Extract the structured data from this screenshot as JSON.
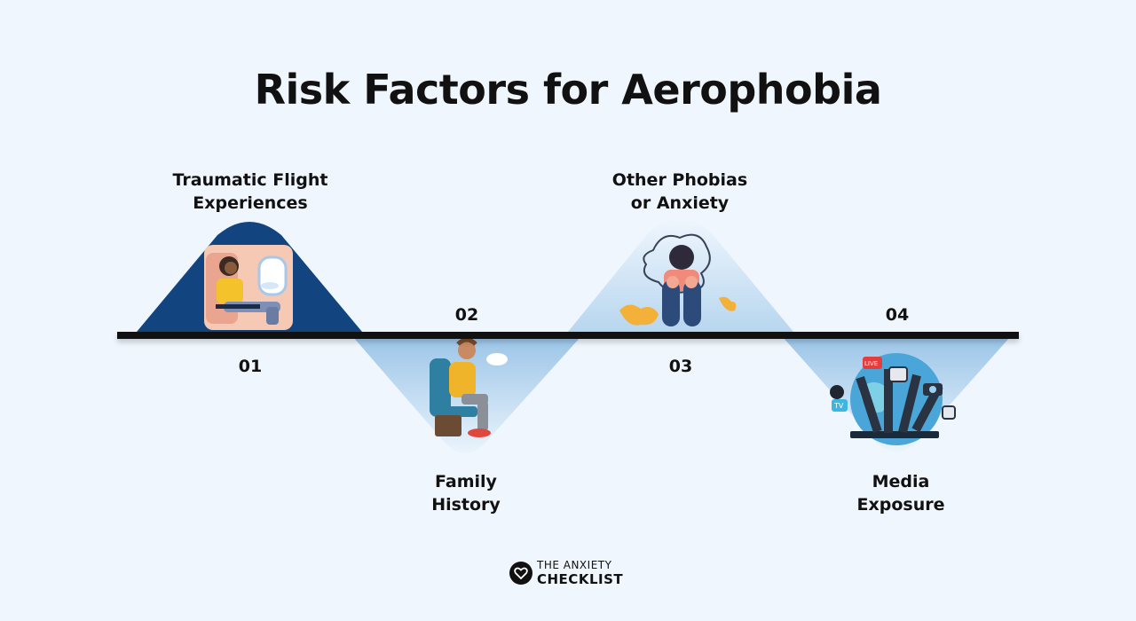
{
  "title": "Risk Factors for Aerophobia",
  "steps": [
    {
      "number": "01",
      "label_line1": "Traumatic Flight",
      "label_line2": "Experiences",
      "icon": "woman-on-airplane-seat-icon",
      "color": "#12457f"
    },
    {
      "number": "02",
      "label_line1": "Family",
      "label_line2": "History",
      "icon": "anxious-man-in-airplane-seat-icon",
      "color": "#b9d8f0"
    },
    {
      "number": "03",
      "label_line1": "Other Phobias",
      "label_line2": "or Anxiety",
      "icon": "anxious-girl-hugging-knees-icon",
      "color": "#b9d8f0"
    },
    {
      "number": "04",
      "label_line1": "Media",
      "label_line2": "Exposure",
      "icon": "media-microphones-cameras-icon",
      "color": "#b9d8f0"
    }
  ],
  "logo": {
    "line1": "THE ANXIETY",
    "line2": "CHECKLIST",
    "icon": "heart-in-circle-icon"
  }
}
